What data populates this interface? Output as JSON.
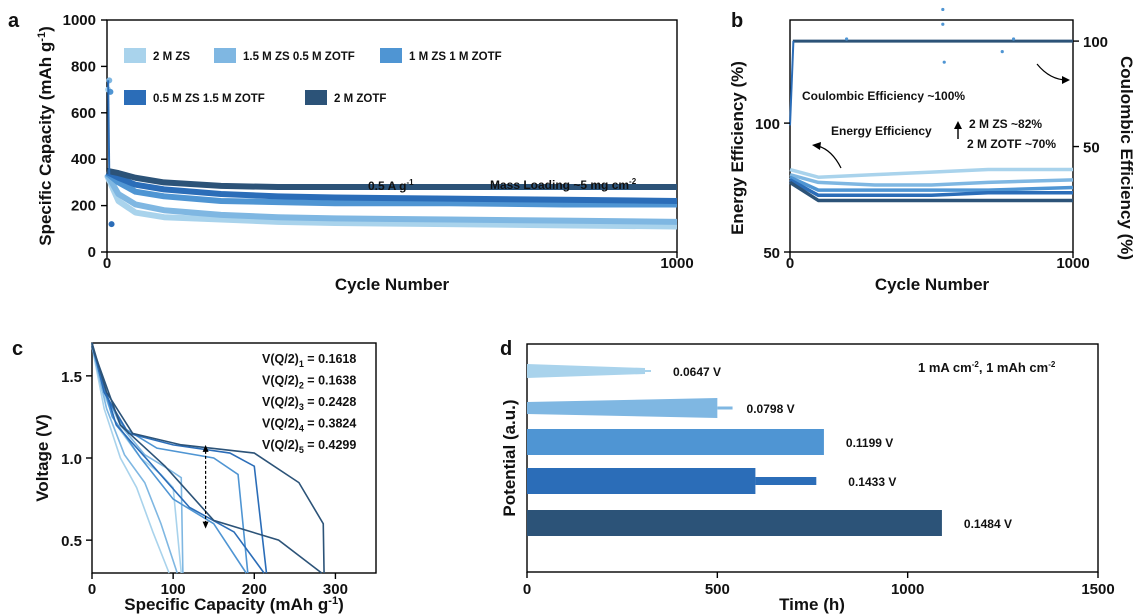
{
  "colors": {
    "c1": "#a9d3ec",
    "c2": "#7fb7e2",
    "c3": "#4f95d3",
    "c4": "#2b6db8",
    "c5": "#2c5378"
  },
  "chart_data": [
    {
      "id": "a",
      "type": "line",
      "panel_letter": "a",
      "xlabel": "Cycle Number",
      "ylabel": "Specific Capacity (mAh g",
      "ylabel_sup": "-1",
      "ylabel_close": ")",
      "xlim": [
        0,
        1000
      ],
      "ylim": [
        0,
        1000
      ],
      "xticks": [
        "0",
        "1000"
      ],
      "yticks": [
        "0",
        "200",
        "400",
        "600",
        "800",
        "1000"
      ],
      "legend": [
        "2 M ZS",
        "1.5 M ZS 0.5 M ZOTF",
        "1 M ZS 1 M ZOTF",
        "0.5 M ZS 1.5 M ZOTF",
        "2 M ZOTF"
      ],
      "ann_rate": "0.5 A g",
      "ann_rate_sup": "-1",
      "ann_loading": "Mass Loading ~5 mg cm",
      "ann_loading_sup": "-2",
      "series": [
        {
          "name": "2 M ZS",
          "x": [
            0,
            20,
            50,
            100,
            200,
            300,
            400,
            600,
            800,
            1000
          ],
          "y": [
            330,
            220,
            170,
            150,
            140,
            130,
            125,
            120,
            115,
            110
          ]
        },
        {
          "name": "1.5 M ZS 0.5 M ZOTF",
          "x": [
            0,
            20,
            50,
            100,
            200,
            300,
            400,
            600,
            800,
            1000
          ],
          "y": [
            335,
            250,
            205,
            180,
            160,
            150,
            145,
            140,
            135,
            130
          ]
        },
        {
          "name": "1 M ZS 1 M ZOTF",
          "x": [
            0,
            20,
            50,
            100,
            200,
            300,
            400,
            600,
            800,
            1000
          ],
          "y": [
            340,
            300,
            260,
            240,
            220,
            215,
            210,
            210,
            205,
            205
          ]
        },
        {
          "name": "0.5 M ZS 1.5 M ZOTF",
          "x": [
            0,
            20,
            50,
            100,
            200,
            300,
            400,
            600,
            800,
            1000
          ],
          "y": [
            345,
            320,
            290,
            270,
            250,
            240,
            235,
            230,
            225,
            220
          ]
        },
        {
          "name": "2 M ZOTF",
          "x": [
            0,
            20,
            50,
            100,
            200,
            300,
            400,
            600,
            800,
            1000
          ],
          "y": [
            350,
            340,
            320,
            300,
            285,
            280,
            280,
            280,
            280,
            280
          ]
        }
      ],
      "spikes": {
        "x": [
          2,
          4,
          6,
          8
        ],
        "y": [
          700,
          740,
          690,
          120
        ]
      }
    },
    {
      "id": "b",
      "type": "line",
      "panel_letter": "b",
      "xlabel": "Cycle Number",
      "ylabel": "Energy Efficiency (%)",
      "ylabel_right": "Coulombic Efficiency (%)",
      "xlim": [
        0,
        1000
      ],
      "ylim_left": [
        50,
        140
      ],
      "ylim_right": [
        0,
        110
      ],
      "xticks": [
        "0",
        "1000"
      ],
      "yticks_left": [
        "50",
        "100"
      ],
      "yticks_right": [
        "50",
        "100"
      ],
      "ann_ce": "Coulombic Efficiency ~100%",
      "ann_ee": "Energy Efficiency",
      "ann_ee_zs": "2 M ZS ~82%",
      "ann_ee_zotf": "2 M ZOTF ~70%",
      "ce_value": 100,
      "ee_series": [
        {
          "name": "2 M ZS",
          "x": [
            0,
            100,
            300,
            500,
            700,
            1000
          ],
          "y": [
            82,
            79,
            80,
            81,
            82,
            82
          ]
        },
        {
          "name": "1.5 M ZS 0.5 M ZOTF",
          "x": [
            0,
            100,
            300,
            500,
            700,
            1000
          ],
          "y": [
            80,
            77,
            76,
            76,
            77,
            78
          ]
        },
        {
          "name": "1 M ZS 1 M ZOTF",
          "x": [
            0,
            100,
            300,
            500,
            700,
            1000
          ],
          "y": [
            79,
            74,
            74,
            74,
            74,
            75
          ]
        },
        {
          "name": "0.5 M ZS 1.5 M ZOTF",
          "x": [
            0,
            100,
            300,
            500,
            700,
            1000
          ],
          "y": [
            78,
            72,
            72,
            72,
            73,
            73
          ]
        },
        {
          "name": "2 M ZOTF",
          "x": [
            0,
            100,
            300,
            500,
            700,
            1000
          ],
          "y": [
            77,
            70,
            70,
            70,
            70,
            70
          ]
        }
      ]
    },
    {
      "id": "c",
      "type": "line",
      "panel_letter": "c",
      "xlabel": "Specific Capacity (mAh g",
      "xlabel_sup": "-1",
      "xlabel_close": ")",
      "ylabel": "Voltage (V)",
      "xlim": [
        0,
        350
      ],
      "ylim": [
        0.3,
        1.7
      ],
      "xticks": [
        "0",
        "100",
        "200",
        "300"
      ],
      "yticks": [
        "0.5",
        "1.0",
        "1.5"
      ],
      "labels": [
        {
          "base": "V(Q/2)",
          "sub": "1",
          "value": " = 0.1618"
        },
        {
          "base": "V(Q/2)",
          "sub": "2",
          "value": " = 0.1638"
        },
        {
          "base": "V(Q/2)",
          "sub": "3",
          "value": " = 0.2428"
        },
        {
          "base": "V(Q/2)",
          "sub": "4",
          "value": " = 0.3824"
        },
        {
          "base": "V(Q/2)",
          "sub": "5",
          "value": " = 0.4299"
        }
      ],
      "series": [
        {
          "charge": [
            [
              0,
              1.7
            ],
            [
              10,
              1.45
            ],
            [
              30,
              1.2
            ],
            [
              60,
              1.0
            ],
            [
              85,
              0.9
            ],
            [
              100,
              0.82
            ],
            [
              110,
              0.3
            ]
          ],
          "discharge": [
            [
              0,
              1.68
            ],
            [
              15,
              1.3
            ],
            [
              35,
              1.0
            ],
            [
              55,
              0.82
            ],
            [
              75,
              0.55
            ],
            [
              95,
              0.3
            ]
          ]
        },
        {
          "charge": [
            [
              0,
              1.7
            ],
            [
              12,
              1.45
            ],
            [
              35,
              1.2
            ],
            [
              65,
              1.02
            ],
            [
              95,
              0.93
            ],
            [
              110,
              0.88
            ],
            [
              112,
              0.3
            ]
          ],
          "discharge": [
            [
              0,
              1.68
            ],
            [
              18,
              1.3
            ],
            [
              40,
              1.02
            ],
            [
              65,
              0.85
            ],
            [
              85,
              0.6
            ],
            [
              105,
              0.3
            ]
          ]
        },
        {
          "charge": [
            [
              0,
              1.7
            ],
            [
              15,
              1.4
            ],
            [
              40,
              1.18
            ],
            [
              80,
              1.06
            ],
            [
              150,
              1.0
            ],
            [
              180,
              0.9
            ],
            [
              192,
              0.3
            ]
          ],
          "discharge": [
            [
              0,
              1.68
            ],
            [
              25,
              1.25
            ],
            [
              60,
              1.0
            ],
            [
              100,
              0.75
            ],
            [
              150,
              0.6
            ],
            [
              190,
              0.3
            ]
          ]
        },
        {
          "charge": [
            [
              0,
              1.7
            ],
            [
              15,
              1.4
            ],
            [
              45,
              1.15
            ],
            [
              100,
              1.08
            ],
            [
              170,
              1.03
            ],
            [
              200,
              0.95
            ],
            [
              215,
              0.3
            ]
          ],
          "discharge": [
            [
              0,
              1.68
            ],
            [
              30,
              1.2
            ],
            [
              70,
              0.98
            ],
            [
              120,
              0.7
            ],
            [
              175,
              0.55
            ],
            [
              212,
              0.3
            ]
          ]
        },
        {
          "charge": [
            [
              0,
              1.7
            ],
            [
              18,
              1.4
            ],
            [
              50,
              1.15
            ],
            [
              110,
              1.08
            ],
            [
              200,
              1.03
            ],
            [
              255,
              0.85
            ],
            [
              285,
              0.6
            ],
            [
              286,
              0.3
            ]
          ],
          "discharge": [
            [
              0,
              1.68
            ],
            [
              35,
              1.2
            ],
            [
              90,
              0.95
            ],
            [
              150,
              0.62
            ],
            [
              230,
              0.5
            ],
            [
              283,
              0.3
            ]
          ]
        }
      ],
      "arrow": {
        "x": 140,
        "y1": 1.08,
        "y2": 0.57
      }
    },
    {
      "id": "d",
      "type": "bar",
      "panel_letter": "d",
      "xlabel": "Time (h)",
      "ylabel": "Potential (a.u.)",
      "xlim": [
        0,
        1500
      ],
      "xticks": [
        "0",
        "500",
        "1000",
        "1500"
      ],
      "condition": "1 mA cm",
      "condition_sup1": "-2",
      "condition_mid": ", 1 mAh cm",
      "condition_sup2": "-2",
      "bars": [
        {
          "name": "2 M ZS",
          "end_hours": 310,
          "value_label": "0.0647 V"
        },
        {
          "name": "1.5 M ZS 0.5 M ZOTF",
          "end_hours": 540,
          "value_label": "0.0798 V"
        },
        {
          "name": "1 M ZS 1 M ZOTF",
          "end_hours": 780,
          "value_label": "0.1199 V"
        },
        {
          "name": "0.5 M ZS 1.5 M ZOTF",
          "end_hours": 760,
          "value_label": "0.1433 V"
        },
        {
          "name": "2 M ZOTF",
          "end_hours": 1090,
          "value_label": "0.1484 V"
        }
      ]
    }
  ]
}
